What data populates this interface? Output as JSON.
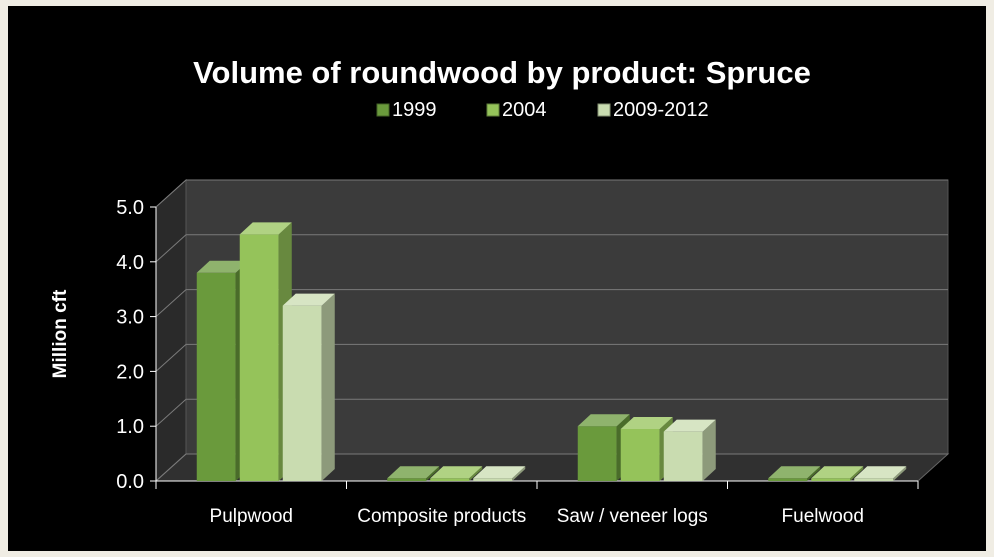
{
  "chart_data": {
    "type": "bar",
    "title": "Volume of roundwood by product:  Spruce",
    "ylabel": "Million cft",
    "xlabel": "",
    "categories": [
      "Pulpwood",
      "Composite products",
      "Saw / veneer logs",
      "Fuelwood"
    ],
    "series": [
      {
        "name": "1999",
        "values": [
          3.8,
          0.05,
          1.0,
          0.05
        ],
        "color": "#6a9a3c"
      },
      {
        "name": "2004",
        "values": [
          4.5,
          0.05,
          0.95,
          0.05
        ],
        "color": "#95c35a"
      },
      {
        "name": "2009-2012",
        "values": [
          3.2,
          0.05,
          0.9,
          0.05
        ],
        "color": "#c9dcb0"
      }
    ],
    "ylim": [
      0,
      5
    ],
    "yticks": [
      "0.0",
      "1.0",
      "2.0",
      "3.0",
      "4.0",
      "5.0"
    ],
    "legend_position": "top",
    "grid": true,
    "background": "#000000",
    "text_color": "#ffffff"
  }
}
